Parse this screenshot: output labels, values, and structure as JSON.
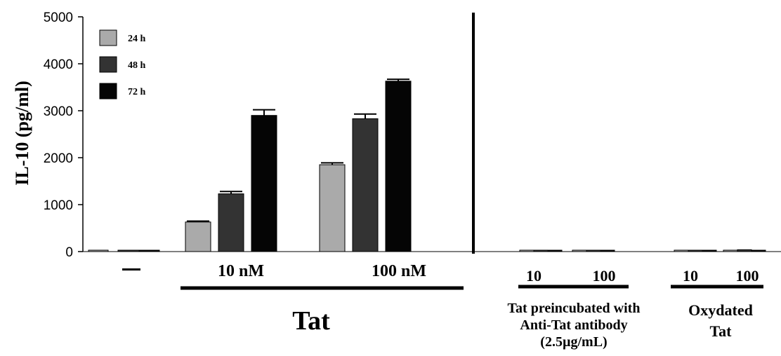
{
  "chart_data": {
    "type": "bar",
    "ylabel": "IL-10 (pg/ml)",
    "ylim": [
      0,
      5000
    ],
    "yticks": [
      "0",
      "1000",
      "2000",
      "3000",
      "4000",
      "5000"
    ],
    "legend_position": "top-left",
    "series": [
      {
        "name": "24 h",
        "color": "#aaaaaa"
      },
      {
        "name": "48 h",
        "color": "#333333"
      },
      {
        "name": "72 h",
        "color": "#050505"
      }
    ],
    "groups": [
      {
        "label": "—",
        "values": [
          10,
          20,
          10
        ],
        "errors": [
          0,
          0,
          0
        ]
      },
      {
        "label": "10 nM",
        "values": [
          630,
          1230,
          2900
        ],
        "errors": [
          20,
          50,
          120
        ]
      },
      {
        "label": "100 nM",
        "values": [
          1850,
          2830,
          3630
        ],
        "errors": [
          40,
          100,
          40
        ]
      },
      {
        "label": "10",
        "values": [
          5,
          30,
          5
        ],
        "errors": [
          0,
          0,
          0
        ]
      },
      {
        "label": "100",
        "values": [
          5,
          10,
          5
        ],
        "errors": [
          0,
          0,
          0
        ]
      },
      {
        "label": "10",
        "values": [
          5,
          25,
          5
        ],
        "errors": [
          0,
          0,
          0
        ]
      },
      {
        "label": "100",
        "values": [
          5,
          40,
          5
        ],
        "errors": [
          0,
          0,
          0
        ]
      }
    ],
    "bracket_labels": [
      "Tat",
      "Tat preincubated with\nAnti-Tat antibody\n(2.5µg/mL)",
      "Oxydated\nTat"
    ]
  }
}
